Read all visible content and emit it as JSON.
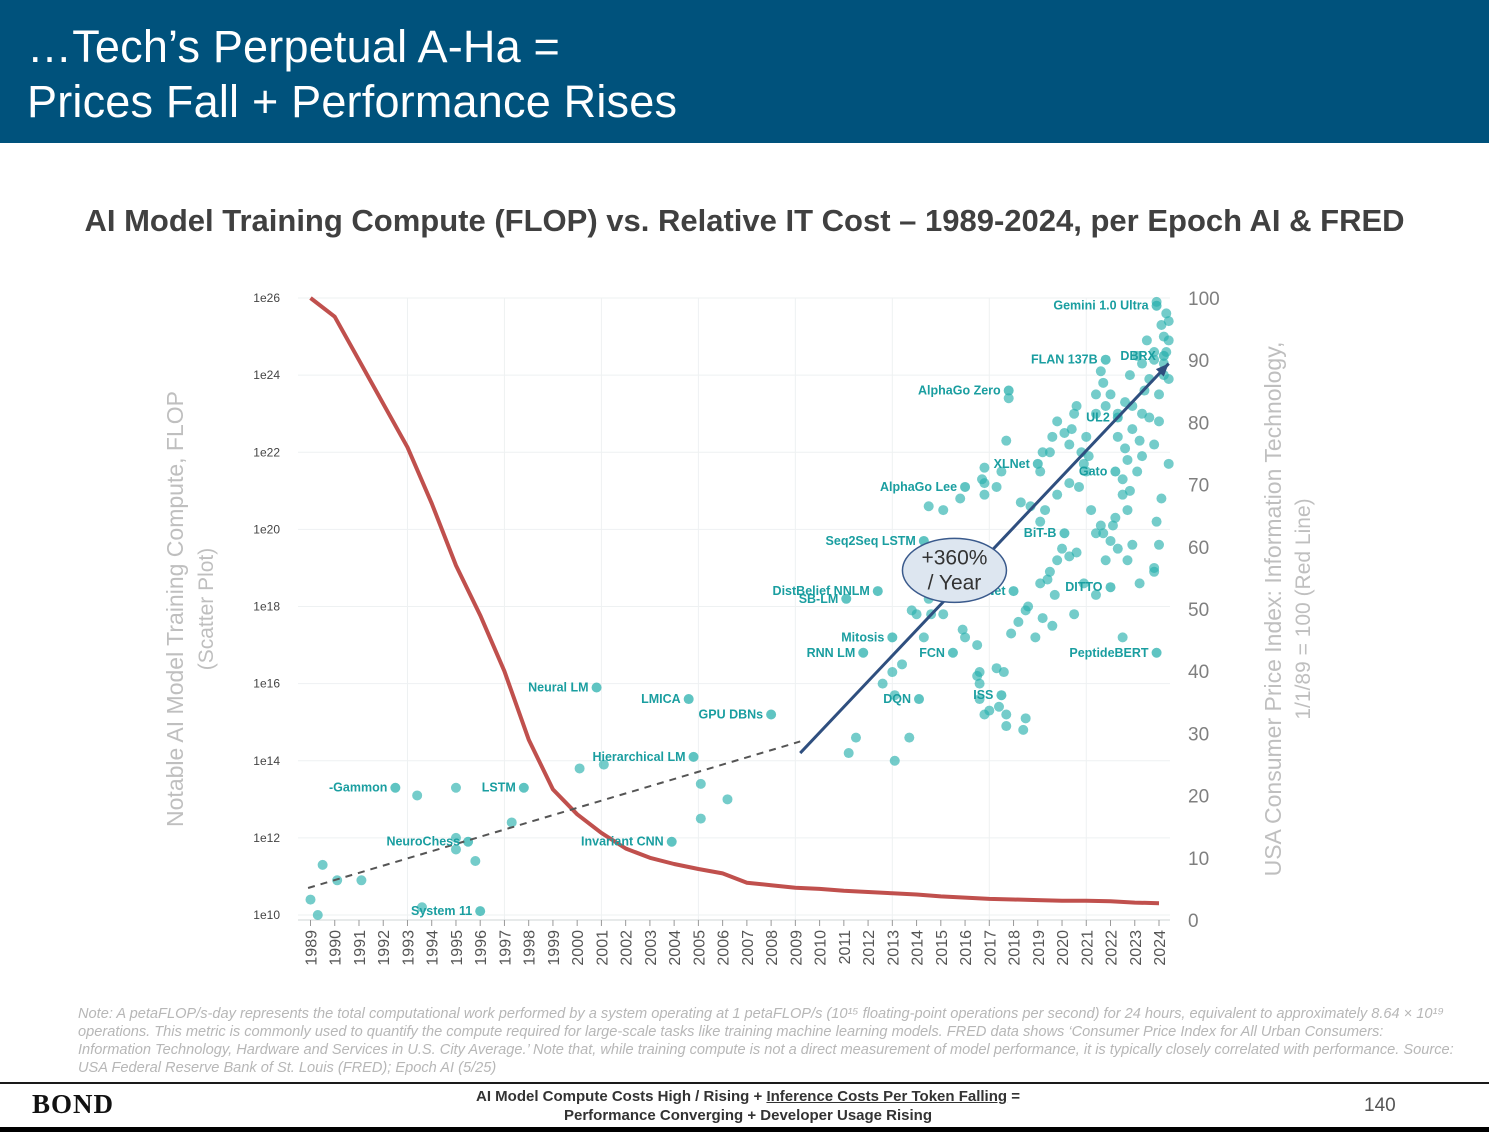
{
  "header": {
    "line1": "…Tech’s Perpetual A-Ha =",
    "line2": "Prices Fall + Performance Rises"
  },
  "chart_data": {
    "type": "scatter",
    "title": "AI Model Training Compute (FLOP) vs. Relative IT Cost – 1989-2024, per Epoch AI & FRED",
    "ylabel": "Notable AI Model Training Compute, FLOP",
    "ylabel_sub": "(Scatter Plot)",
    "y2label": "USA Consumer Price Index: Information Technology,",
    "y2label_sub": "1/1/89 = 100 (Red Line)",
    "x_years": [
      "1989",
      "1990",
      "1991",
      "1992",
      "1993",
      "1994",
      "1995",
      "1996",
      "1997",
      "1998",
      "1999",
      "2000",
      "2001",
      "2002",
      "2003",
      "2004",
      "2005",
      "2006",
      "2007",
      "2008",
      "2009",
      "2010",
      "2011",
      "2012",
      "2013",
      "2014",
      "2015",
      "2016",
      "2017",
      "2018",
      "2019",
      "2020",
      "2021",
      "2022",
      "2023",
      "2024"
    ],
    "y_log_ticks": [
      {
        "exp": 10,
        "label": "1e10"
      },
      {
        "exp": 12,
        "label": "1e12"
      },
      {
        "exp": 14,
        "label": "1e14"
      },
      {
        "exp": 16,
        "label": "1e16"
      },
      {
        "exp": 18,
        "label": "1e18"
      },
      {
        "exp": 20,
        "label": "1e20"
      },
      {
        "exp": 22,
        "label": "1e22"
      },
      {
        "exp": 24,
        "label": "1e24"
      },
      {
        "exp": 26,
        "label": "1e26"
      }
    ],
    "ylim_log10": [
      10,
      26
    ],
    "y2_ticks": [
      "0",
      "10",
      "20",
      "30",
      "40",
      "50",
      "60",
      "70",
      "80",
      "90",
      "100"
    ],
    "y2lim": [
      0,
      100
    ],
    "cpi_series": {
      "name": "USA Consumer Price Index: Information Technology",
      "color": "#c0504d",
      "points": [
        [
          1989.0,
          100
        ],
        [
          1990.0,
          97
        ],
        [
          1991.0,
          90
        ],
        [
          1992.0,
          83
        ],
        [
          1993.0,
          76
        ],
        [
          1994.0,
          67
        ],
        [
          1995.0,
          57
        ],
        [
          1996.0,
          49
        ],
        [
          1997.0,
          40
        ],
        [
          1998.0,
          29
        ],
        [
          1999.0,
          21
        ],
        [
          2000.0,
          17
        ],
        [
          2001.0,
          14
        ],
        [
          2002.0,
          11.5
        ],
        [
          2003.0,
          10
        ],
        [
          2004.0,
          9
        ],
        [
          2005.0,
          8.2
        ],
        [
          2006.0,
          7.5
        ],
        [
          2007.0,
          6
        ],
        [
          2008.0,
          5.6
        ],
        [
          2009.0,
          5.2
        ],
        [
          2010.0,
          5
        ],
        [
          2011.0,
          4.7
        ],
        [
          2012.0,
          4.5
        ],
        [
          2013.0,
          4.3
        ],
        [
          2014.0,
          4.1
        ],
        [
          2015.0,
          3.8
        ],
        [
          2016.0,
          3.6
        ],
        [
          2017.0,
          3.4
        ],
        [
          2018.0,
          3.3
        ],
        [
          2019.0,
          3.2
        ],
        [
          2020.0,
          3.1
        ],
        [
          2021.0,
          3.1
        ],
        [
          2022.0,
          3.0
        ],
        [
          2023.0,
          2.8
        ],
        [
          2024.0,
          2.7
        ]
      ]
    },
    "scatter_color": "#2ab0ae",
    "labeled_models": [
      {
        "name": "Gemini 1.0 Ultra",
        "x": 2023.9,
        "y": 25.8
      },
      {
        "name": "FLAN 137B",
        "x": 2021.8,
        "y": 24.4
      },
      {
        "name": "DBRX",
        "x": 2024.2,
        "y": 24.5
      },
      {
        "name": "AlphaGo Zero",
        "x": 2017.8,
        "y": 23.6
      },
      {
        "name": "UL2",
        "x": 2022.3,
        "y": 22.9
      },
      {
        "name": "XLNet",
        "x": 2019.0,
        "y": 21.7
      },
      {
        "name": "Gato",
        "x": 2022.2,
        "y": 21.5
      },
      {
        "name": "AlphaGo Lee",
        "x": 2016.0,
        "y": 21.1
      },
      {
        "name": "Seq2Seq LSTM",
        "x": 2014.3,
        "y": 19.7
      },
      {
        "name": "BiT-B",
        "x": 2020.1,
        "y": 19.9
      },
      {
        "name": "DITTO",
        "x": 2022.0,
        "y": 18.5
      },
      {
        "name": "TransNet",
        "x": 2018.0,
        "y": 18.4
      },
      {
        "name": "DistBelief NNLM",
        "x": 2012.4,
        "y": 18.4
      },
      {
        "name": "SB-LM",
        "x": 2011.1,
        "y": 18.2
      },
      {
        "name": "Mitosis",
        "x": 2013.0,
        "y": 17.2
      },
      {
        "name": "RNN LM",
        "x": 2011.8,
        "y": 16.8
      },
      {
        "name": "FCN",
        "x": 2015.5,
        "y": 16.8
      },
      {
        "name": "PeptideBERT",
        "x": 2023.9,
        "y": 16.8
      },
      {
        "name": "Neural LM",
        "x": 2000.8,
        "y": 15.9
      },
      {
        "name": "LMICA",
        "x": 2004.6,
        "y": 15.6
      },
      {
        "name": "DQN",
        "x": 2014.1,
        "y": 15.6
      },
      {
        "name": "ISS",
        "x": 2017.5,
        "y": 15.7
      },
      {
        "name": "GPU DBNs",
        "x": 2008.0,
        "y": 15.2
      },
      {
        "name": "Hierarchical LM",
        "x": 2004.8,
        "y": 14.1
      },
      {
        "name": "LSTM",
        "x": 1997.8,
        "y": 13.3
      },
      {
        "name": "-Gammon",
        "x": 1992.5,
        "y": 13.3
      },
      {
        "name": "NeuroChess",
        "x": 1995.5,
        "y": 11.9
      },
      {
        "name": "Invariant CNN",
        "x": 2003.9,
        "y": 11.9
      },
      {
        "name": "System 11",
        "x": 1996.0,
        "y": 10.1
      }
    ],
    "other_points": [
      [
        1989.0,
        10.4
      ],
      [
        1989.5,
        11.3
      ],
      [
        1989.3,
        10.0
      ],
      [
        1990.1,
        10.9
      ],
      [
        1991.1,
        10.9
      ],
      [
        1993.6,
        10.2
      ],
      [
        1993.4,
        13.1
      ],
      [
        1995.0,
        12.0
      ],
      [
        1995.0,
        11.7
      ],
      [
        1995.8,
        11.4
      ],
      [
        1997.3,
        12.4
      ],
      [
        1995.0,
        13.3
      ],
      [
        2000.1,
        13.8
      ],
      [
        2001.1,
        13.9
      ],
      [
        2005.1,
        13.4
      ],
      [
        2006.2,
        13.0
      ],
      [
        2005.1,
        12.5
      ],
      [
        2011.5,
        14.6
      ],
      [
        2011.2,
        14.2
      ],
      [
        2012.6,
        16.0
      ],
      [
        2013.1,
        15.7
      ],
      [
        2013.0,
        16.3
      ],
      [
        2013.4,
        16.5
      ],
      [
        2013.7,
        14.6
      ],
      [
        2013.1,
        14.0
      ],
      [
        2014.3,
        17.2
      ],
      [
        2014.0,
        17.8
      ],
      [
        2013.8,
        17.9
      ],
      [
        2014.5,
        18.2
      ],
      [
        2014.6,
        17.8
      ],
      [
        2014.9,
        18.6
      ],
      [
        2015.1,
        18.7
      ],
      [
        2015.1,
        17.8
      ],
      [
        2015.9,
        17.4
      ],
      [
        2016.0,
        17.2
      ],
      [
        2016.5,
        17.0
      ],
      [
        2016.6,
        16.3
      ],
      [
        2016.5,
        16.2
      ],
      [
        2016.6,
        16.0
      ],
      [
        2016.6,
        15.6
      ],
      [
        2016.8,
        15.2
      ],
      [
        2017.0,
        15.3
      ],
      [
        2017.4,
        15.4
      ],
      [
        2017.7,
        15.2
      ],
      [
        2017.7,
        14.9
      ],
      [
        2018.5,
        15.1
      ],
      [
        2018.4,
        14.8
      ],
      [
        2017.3,
        16.4
      ],
      [
        2017.6,
        16.3
      ],
      [
        2017.9,
        17.3
      ],
      [
        2018.2,
        17.6
      ],
      [
        2018.9,
        17.2
      ],
      [
        2019.2,
        17.7
      ],
      [
        2019.6,
        17.5
      ],
      [
        2018.5,
        17.9
      ],
      [
        2018.6,
        18.0
      ],
      [
        2019.1,
        18.6
      ],
      [
        2019.4,
        18.7
      ],
      [
        2019.7,
        18.3
      ],
      [
        2020.5,
        17.8
      ],
      [
        2020.9,
        18.6
      ],
      [
        2021.4,
        18.3
      ],
      [
        2022.5,
        17.2
      ],
      [
        2023.2,
        18.6
      ],
      [
        2023.8,
        18.9
      ],
      [
        2023.8,
        19.0
      ],
      [
        2024.0,
        19.6
      ],
      [
        2014.3,
        19.2
      ],
      [
        2014.5,
        20.6
      ],
      [
        2015.1,
        20.5
      ],
      [
        2015.8,
        20.8
      ],
      [
        2016.8,
        20.9
      ],
      [
        2016.8,
        21.2
      ],
      [
        2016.7,
        21.3
      ],
      [
        2016.8,
        21.6
      ],
      [
        2017.3,
        21.1
      ],
      [
        2017.5,
        21.5
      ],
      [
        2017.7,
        22.3
      ],
      [
        2017.8,
        23.4
      ],
      [
        2018.3,
        20.7
      ],
      [
        2018.7,
        20.6
      ],
      [
        2019.1,
        20.2
      ],
      [
        2019.3,
        20.5
      ],
      [
        2019.8,
        20.9
      ],
      [
        2019.1,
        21.5
      ],
      [
        2019.2,
        22.0
      ],
      [
        2019.5,
        22.0
      ],
      [
        2019.6,
        22.4
      ],
      [
        2019.8,
        22.8
      ],
      [
        2020.1,
        22.5
      ],
      [
        2020.3,
        22.2
      ],
      [
        2020.5,
        23.0
      ],
      [
        2020.6,
        23.2
      ],
      [
        2020.4,
        22.6
      ],
      [
        2020.8,
        22.0
      ],
      [
        2020.9,
        21.7
      ],
      [
        2021.0,
        21.5
      ],
      [
        2021.0,
        22.4
      ],
      [
        2021.4,
        23.5
      ],
      [
        2021.4,
        23.0
      ],
      [
        2021.7,
        23.8
      ],
      [
        2021.6,
        24.1
      ],
      [
        2021.2,
        20.5
      ],
      [
        2021.6,
        20.1
      ],
      [
        2021.7,
        19.9
      ],
      [
        2022.1,
        20.1
      ],
      [
        2022.2,
        20.3
      ],
      [
        2022.5,
        20.9
      ],
      [
        2022.5,
        21.3
      ],
      [
        2022.7,
        21.8
      ],
      [
        2022.8,
        21.0
      ],
      [
        2023.1,
        21.5
      ],
      [
        2023.2,
        22.3
      ],
      [
        2023.3,
        23.0
      ],
      [
        2023.4,
        23.6
      ],
      [
        2023.6,
        22.9
      ],
      [
        2023.8,
        22.2
      ],
      [
        2024.0,
        22.8
      ],
      [
        2024.0,
        23.5
      ],
      [
        2024.2,
        24.0
      ],
      [
        2024.3,
        24.6
      ],
      [
        2024.2,
        25.0
      ],
      [
        2024.1,
        25.3
      ],
      [
        2024.3,
        25.6
      ],
      [
        2023.9,
        25.9
      ],
      [
        2024.4,
        25.4
      ],
      [
        2024.2,
        24.3
      ],
      [
        2023.8,
        24.6
      ],
      [
        2024.4,
        23.9
      ],
      [
        2024.4,
        21.7
      ],
      [
        2024.1,
        20.8
      ],
      [
        2023.9,
        20.2
      ],
      [
        2022.9,
        19.6
      ],
      [
        2022.7,
        19.2
      ],
      [
        2022.3,
        19.5
      ],
      [
        2021.8,
        19.2
      ],
      [
        2020.6,
        19.4
      ],
      [
        2020.3,
        19.3
      ],
      [
        2020.0,
        19.5
      ],
      [
        2019.8,
        19.2
      ],
      [
        2019.5,
        18.9
      ],
      [
        2021.4,
        19.9
      ],
      [
        2022.0,
        19.7
      ],
      [
        2022.7,
        20.5
      ],
      [
        2020.3,
        21.2
      ],
      [
        2020.7,
        21.1
      ],
      [
        2021.1,
        21.9
      ],
      [
        2022.3,
        22.4
      ],
      [
        2022.6,
        22.1
      ],
      [
        2022.9,
        22.6
      ],
      [
        2023.3,
        21.9
      ],
      [
        2021.8,
        23.2
      ],
      [
        2022.0,
        23.5
      ],
      [
        2022.3,
        23.0
      ],
      [
        2022.6,
        23.3
      ],
      [
        2022.9,
        23.2
      ],
      [
        2023.6,
        23.9
      ],
      [
        2023.3,
        24.3
      ],
      [
        2023.8,
        24.4
      ],
      [
        2024.4,
        24.9
      ],
      [
        2023.5,
        24.9
      ],
      [
        2023.1,
        24.5
      ],
      [
        2022.8,
        24.0
      ]
    ],
    "trend_lines": [
      {
        "style": "dashed",
        "color": "#555555",
        "from": [
          1988.9,
          10.7
        ],
        "to": [
          2009.2,
          14.5
        ]
      },
      {
        "style": "solid-arrow",
        "color": "#2f4f7f",
        "from": [
          2009.2,
          14.2
        ],
        "to": [
          2024.4,
          24.3
        ]
      }
    ],
    "annotation": {
      "line1": "+360%",
      "line2": "/ Year",
      "x": 2016.8,
      "y": 19.3
    }
  },
  "note": "Note: A petaFLOP/s-day represents the total computational work performed by a system operating at 1 petaFLOP/s (10¹⁵ floating-point operations per second) for 24 hours, equivalent to approximately 8.64 × 10¹⁹ operations. This metric is commonly used to quantify the compute required for large-scale tasks like training machine learning models. FRED data shows ‘Consumer Price Index for All Urban Consumers: Information Technology, Hardware and Services in U.S. City Average.’ Note that, while training compute is not a direct measurement of model performance, it is typically closely correlated with performance. Source: USA Federal Reserve Bank of St. Louis (FRED); Epoch AI (5/25)",
  "footer": {
    "brand": "BOND",
    "line1_a": "AI Model Compute Costs High / Rising + ",
    "line1_b": "Inference Costs Per Token Falling",
    "line1_c": " =",
    "line2": "Performance Converging + Developer Usage Rising",
    "page": "140"
  }
}
